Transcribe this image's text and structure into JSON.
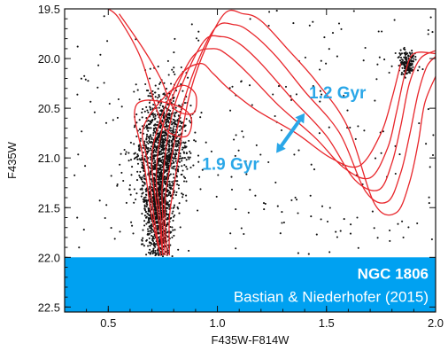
{
  "chart_data": {
    "type": "scatter",
    "xlabel": "F435W-F814W",
    "ylabel": "F435W",
    "xlim": [
      0.3,
      2.0
    ],
    "ylim": [
      22.55,
      19.5
    ],
    "y_inverted": true,
    "x_ticks": [
      {
        "value": 0.5,
        "label": "0.5"
      },
      {
        "value": 1.0,
        "label": "1.0"
      },
      {
        "value": 1.5,
        "label": "1.5"
      },
      {
        "value": 2.0,
        "label": "2.0"
      }
    ],
    "y_ticks": [
      {
        "value": 19.5,
        "label": "19.5"
      },
      {
        "value": 20.0,
        "label": "20.0"
      },
      {
        "value": 20.5,
        "label": "20.5"
      },
      {
        "value": 21.0,
        "label": "21.0"
      },
      {
        "value": 21.5,
        "label": "21.5"
      },
      {
        "value": 22.0,
        "label": "22.0"
      },
      {
        "value": 22.5,
        "label": "22.5"
      }
    ],
    "isochrones": [
      {
        "points": [
          [
            0.74,
            21.98
          ],
          [
            0.7,
            21.6
          ],
          [
            0.66,
            21.0
          ],
          [
            0.62,
            20.55
          ],
          [
            0.67,
            20.42
          ],
          [
            0.82,
            20.48
          ],
          [
            0.88,
            20.6
          ],
          [
            0.86,
            20.78
          ],
          [
            0.77,
            20.73
          ],
          [
            0.72,
            20.5
          ],
          [
            0.65,
            20.0
          ],
          [
            0.55,
            19.6
          ],
          [
            0.5,
            19.5
          ]
        ]
      },
      {
        "points": [
          [
            0.74,
            21.98
          ],
          [
            0.71,
            21.6
          ],
          [
            0.68,
            21.05
          ],
          [
            0.66,
            20.7
          ],
          [
            0.76,
            20.38
          ],
          [
            0.84,
            20.27
          ],
          [
            0.9,
            20.36
          ],
          [
            0.89,
            20.55
          ],
          [
            0.8,
            20.5
          ],
          [
            0.74,
            20.2
          ],
          [
            0.66,
            19.9
          ],
          [
            0.55,
            19.55
          ]
        ]
      },
      {
        "points": [
          [
            0.75,
            21.98
          ],
          [
            0.73,
            21.6
          ],
          [
            0.7,
            21.1
          ],
          [
            0.72,
            20.75
          ],
          [
            0.82,
            20.2
          ],
          [
            0.92,
            20.05
          ],
          [
            0.98,
            20.15
          ],
          [
            1.05,
            20.3
          ],
          [
            1.18,
            20.52
          ],
          [
            1.36,
            20.75
          ],
          [
            1.52,
            21.0
          ],
          [
            1.65,
            21.08
          ],
          [
            1.75,
            20.75
          ],
          [
            1.8,
            20.4
          ],
          [
            1.84,
            20.05
          ]
        ]
      },
      {
        "points": [
          [
            0.75,
            21.98
          ],
          [
            0.74,
            21.6
          ],
          [
            0.72,
            21.15
          ],
          [
            0.76,
            20.6
          ],
          [
            0.88,
            20.0
          ],
          [
            0.98,
            19.9
          ],
          [
            1.05,
            19.97
          ],
          [
            1.14,
            20.15
          ],
          [
            1.28,
            20.47
          ],
          [
            1.45,
            20.8
          ],
          [
            1.58,
            21.1
          ],
          [
            1.7,
            21.2
          ],
          [
            1.78,
            20.9
          ],
          [
            1.82,
            20.55
          ],
          [
            1.86,
            20.15
          ],
          [
            1.9,
            19.95
          ],
          [
            2.0,
            19.95
          ]
        ]
      },
      {
        "points": [
          [
            0.76,
            21.98
          ],
          [
            0.75,
            21.6
          ],
          [
            0.75,
            21.2
          ],
          [
            0.8,
            20.5
          ],
          [
            0.93,
            19.85
          ],
          [
            1.02,
            19.78
          ],
          [
            1.1,
            19.85
          ],
          [
            1.2,
            20.05
          ],
          [
            1.34,
            20.4
          ],
          [
            1.5,
            20.78
          ],
          [
            1.63,
            21.22
          ],
          [
            1.74,
            21.32
          ],
          [
            1.8,
            21.05
          ],
          [
            1.84,
            20.68
          ],
          [
            1.88,
            20.25
          ],
          [
            1.93,
            20.0
          ],
          [
            2.0,
            19.92
          ]
        ]
      },
      {
        "points": [
          [
            0.77,
            21.98
          ],
          [
            0.76,
            21.6
          ],
          [
            0.77,
            21.25
          ],
          [
            0.85,
            20.4
          ],
          [
            0.98,
            19.72
          ],
          [
            1.08,
            19.66
          ],
          [
            1.16,
            19.75
          ],
          [
            1.27,
            19.98
          ],
          [
            1.4,
            20.33
          ],
          [
            1.56,
            20.75
          ],
          [
            1.68,
            21.34
          ],
          [
            1.78,
            21.44
          ],
          [
            1.84,
            21.15
          ],
          [
            1.88,
            20.78
          ],
          [
            1.92,
            20.35
          ],
          [
            1.96,
            20.08
          ],
          [
            2.0,
            19.98
          ]
        ]
      },
      {
        "points": [
          [
            0.78,
            21.98
          ],
          [
            0.78,
            21.6
          ],
          [
            0.8,
            21.3
          ],
          [
            0.88,
            20.3
          ],
          [
            1.02,
            19.58
          ],
          [
            1.12,
            19.55
          ],
          [
            1.2,
            19.62
          ],
          [
            1.32,
            19.9
          ],
          [
            1.46,
            20.25
          ],
          [
            1.6,
            20.7
          ],
          [
            1.72,
            21.46
          ],
          [
            1.82,
            21.55
          ],
          [
            1.88,
            21.25
          ],
          [
            1.92,
            20.85
          ],
          [
            1.95,
            20.45
          ],
          [
            2.0,
            20.18
          ]
        ]
      }
    ],
    "star_groups": [
      {
        "cx": 0.73,
        "cy": 21.55,
        "sx": 0.03,
        "sy": 0.28,
        "n": 900
      },
      {
        "cx": 0.74,
        "cy": 21.0,
        "sx": 0.06,
        "sy": 0.28,
        "n": 700
      },
      {
        "cx": 0.77,
        "cy": 20.75,
        "sx": 0.05,
        "sy": 0.25,
        "n": 400
      },
      {
        "cx": 1.87,
        "cy": 20.05,
        "sx": 0.02,
        "sy": 0.06,
        "n": 160
      }
    ],
    "star_scatter": {
      "x_range": [
        0.32,
        2.0
      ],
      "y_range": [
        19.5,
        22.0
      ],
      "n": 260
    },
    "arrow": {
      "from": [
        1.27,
        20.95
      ],
      "to": [
        1.4,
        20.55
      ],
      "color": "#2aa7e8"
    },
    "annotations": [
      {
        "text": "1.2 Gyr",
        "x": 1.42,
        "y": 20.4,
        "color": "#2aa7e8",
        "anchor": "start"
      },
      {
        "text": "1.9 Gyr",
        "x": 0.93,
        "y": 21.12,
        "color": "#2aa7e8",
        "anchor": "start"
      }
    ],
    "band": {
      "y_from": 22.0,
      "y_to": 22.55,
      "color": "#00a1f1"
    },
    "band_title": "NGC 1806",
    "band_credit": "Bastian & Niederhofer (2015)",
    "colors": {
      "isochrone": "#e8262b",
      "star": "#111111",
      "frame": "#111111"
    }
  }
}
